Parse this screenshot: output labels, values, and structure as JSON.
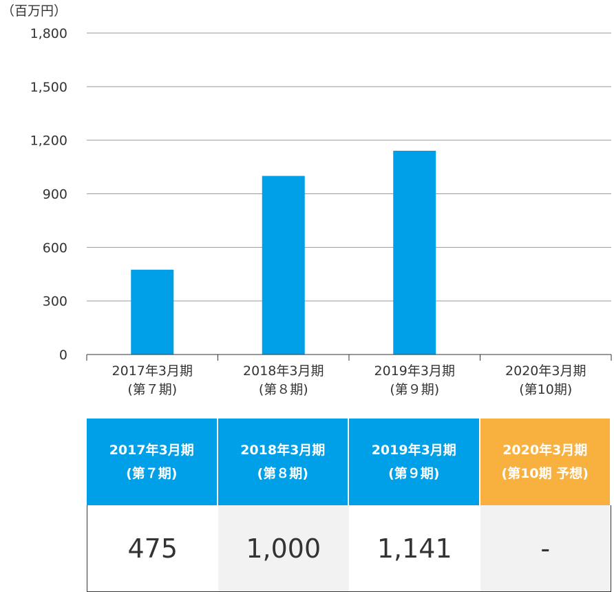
{
  "chart_data": {
    "type": "bar",
    "unit_label": "（百万円）",
    "categories": [
      {
        "line1": "2017年3月期",
        "line2": "(第７期)"
      },
      {
        "line1": "2018年3月期",
        "line2": "(第８期)"
      },
      {
        "line1": "2019年3月期",
        "line2": "(第９期)"
      },
      {
        "line1": "2020年3月期",
        "line2": "(第10期)"
      }
    ],
    "values": [
      475,
      1000,
      1141,
      null
    ],
    "ylim": [
      0,
      1800
    ],
    "yticks": [
      "0",
      "300",
      "600",
      "900",
      "1,200",
      "1,500",
      "1,800"
    ],
    "ytick_values": [
      0,
      300,
      600,
      900,
      1200,
      1500,
      1800
    ],
    "grid": true,
    "colors": {
      "bar": "#00a0e9",
      "grid": "#999999",
      "axis": "#333333"
    }
  },
  "table": {
    "headers": [
      {
        "line1": "2017年3月期",
        "line2": "(第７期)",
        "color": "#00a0e9"
      },
      {
        "line1": "2018年3月期",
        "line2": "(第８期)",
        "color": "#00a0e9"
      },
      {
        "line1": "2019年3月期",
        "line2": "(第９期)",
        "color": "#00a0e9"
      },
      {
        "line1": "2020年3月期",
        "line2": "(第10期 予想)",
        "color": "#f8b13f"
      }
    ],
    "values": [
      "475",
      "1,000",
      "1,141",
      "-"
    ]
  }
}
